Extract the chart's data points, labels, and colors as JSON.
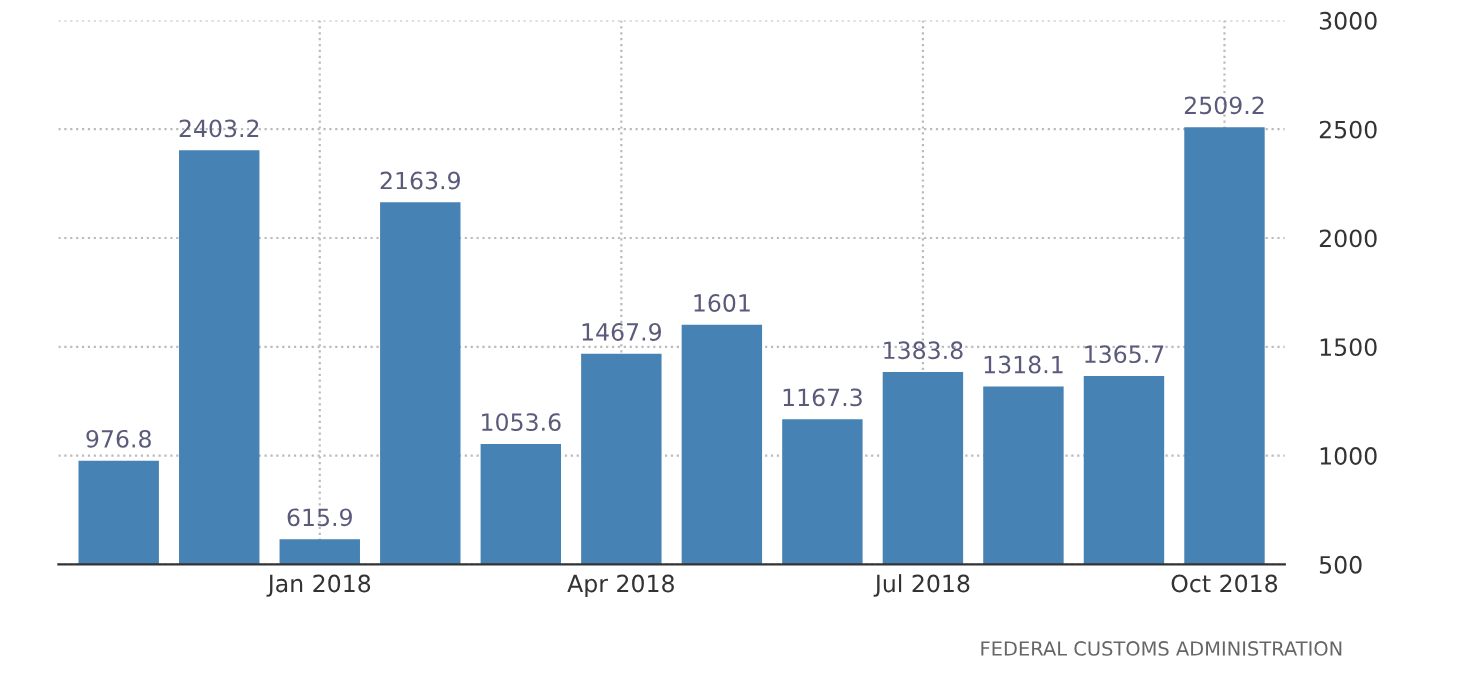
{
  "chart_data": {
    "type": "bar",
    "categories": [
      null,
      null,
      "Jan 2018",
      null,
      null,
      "Apr 2018",
      null,
      null,
      "Jul 2018",
      null,
      null,
      "Oct 2018"
    ],
    "values": [
      976.8,
      2403.2,
      615.9,
      2163.9,
      1053.6,
      1467.9,
      1601,
      1167.3,
      1383.8,
      1318.1,
      1365.7,
      2509.2
    ],
    "color": "#4682b4",
    "ylim": [
      500,
      3000
    ],
    "yticks": [
      500,
      1000,
      1500,
      2000,
      2500,
      3000
    ],
    "grid": true,
    "data_labels": true,
    "annotations": [
      "FEDERAL CUSTOMS ADMINISTRATION"
    ]
  }
}
